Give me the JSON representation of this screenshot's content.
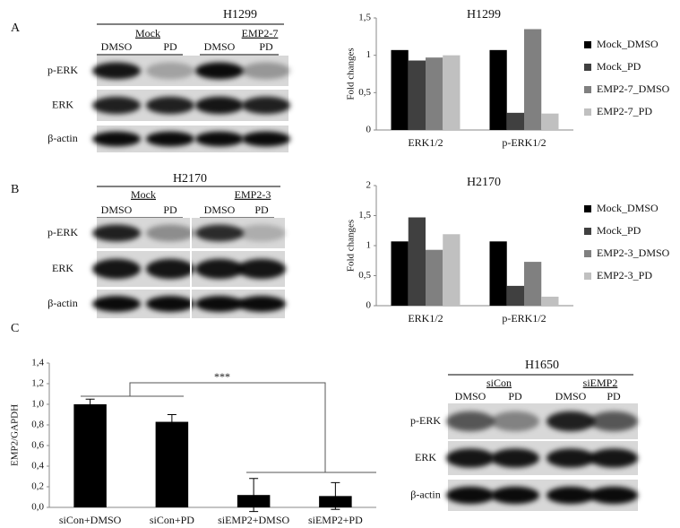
{
  "panels": {
    "a": "A",
    "b": "B",
    "c": "C"
  },
  "blots": [
    {
      "cell_line": "H1299",
      "groups": [
        {
          "name": "Mock",
          "subs": [
            "DMSO",
            "PD"
          ]
        },
        {
          "name": "EMP2-7",
          "subs": [
            "DMSO",
            "PD"
          ]
        }
      ],
      "rows": [
        "p-ERK",
        "ERK",
        "β-actin"
      ]
    },
    {
      "cell_line": "H2170",
      "groups": [
        {
          "name": "Mock",
          "subs": [
            "DMSO",
            "PD"
          ]
        },
        {
          "name": "EMP2-3",
          "subs": [
            "DMSO",
            "PD"
          ]
        }
      ],
      "rows": [
        "p-ERK",
        "ERK",
        "β-actin"
      ]
    },
    {
      "cell_line": "H1650",
      "groups": [
        {
          "name": "siCon",
          "subs": [
            "DMSO",
            "PD"
          ]
        },
        {
          "name": "siEMP2",
          "subs": [
            "DMSO",
            "PD"
          ]
        }
      ],
      "rows": [
        "p-ERK",
        "ERK",
        "β-actin"
      ]
    }
  ],
  "chart_data": [
    {
      "type": "bar",
      "title": "H1299",
      "ylabel": "Fold changes",
      "categories": [
        "ERK1/2",
        "p-ERK1/2"
      ],
      "series": [
        {
          "name": "Mock_DMSO",
          "color": "#000000",
          "values": [
            1.07,
            1.07
          ]
        },
        {
          "name": "Mock_PD",
          "color": "#404040",
          "values": [
            0.93,
            0.23
          ]
        },
        {
          "name": "EMP2-7_DMSO",
          "color": "#808080",
          "values": [
            0.97,
            1.35
          ]
        },
        {
          "name": "EMP2-7_PD",
          "color": "#c0c0c0",
          "values": [
            1.0,
            0.22
          ]
        }
      ],
      "ylim": [
        0,
        1.5
      ],
      "yticks": [
        0,
        {
          "value": 0.5,
          "label": "0,5"
        },
        1,
        {
          "value": 1.5,
          "label": "1,5"
        }
      ]
    },
    {
      "type": "bar",
      "title": "H2170",
      "ylabel": "Fold changes",
      "categories": [
        "ERK1/2",
        "p-ERK1/2"
      ],
      "series": [
        {
          "name": "Mock_DMSO",
          "color": "#000000",
          "values": [
            1.07,
            1.07
          ]
        },
        {
          "name": "Mock_PD",
          "color": "#404040",
          "values": [
            1.47,
            0.33
          ]
        },
        {
          "name": "EMP2-3_DMSO",
          "color": "#808080",
          "values": [
            0.93,
            0.73
          ]
        },
        {
          "name": "EMP2-3_PD",
          "color": "#c0c0c0",
          "values": [
            1.19,
            0.15
          ]
        }
      ],
      "ylim": [
        0,
        2
      ],
      "yticks": [
        0,
        {
          "value": 0.5,
          "label": "0,5"
        },
        1,
        {
          "value": 1.5,
          "label": "1,5"
        },
        2
      ]
    },
    {
      "type": "errorbar",
      "ylabel": "EMP2/GAPDH",
      "annotation": "***",
      "color": "#000000",
      "categories": [
        "siCon+DMSO",
        "siCon+PD",
        "siEMP2+DMSO",
        "siEMP2+PD"
      ],
      "values": [
        1.0,
        0.83,
        0.12,
        0.11
      ],
      "errors": [
        0.05,
        0.07,
        0.16,
        0.13
      ],
      "ylim": [
        0,
        1.4
      ],
      "yticks": [
        {
          "value": 0,
          "label": "0,0"
        },
        {
          "value": 0.2,
          "label": "0,2"
        },
        {
          "value": 0.4,
          "label": "0,4"
        },
        {
          "value": 0.6,
          "label": "0,6"
        },
        {
          "value": 0.8,
          "label": "0,8"
        },
        {
          "value": 1,
          "label": "1,0"
        },
        {
          "value": 1.2,
          "label": "1,2"
        },
        {
          "value": 1.4,
          "label": "1,4"
        }
      ]
    }
  ]
}
